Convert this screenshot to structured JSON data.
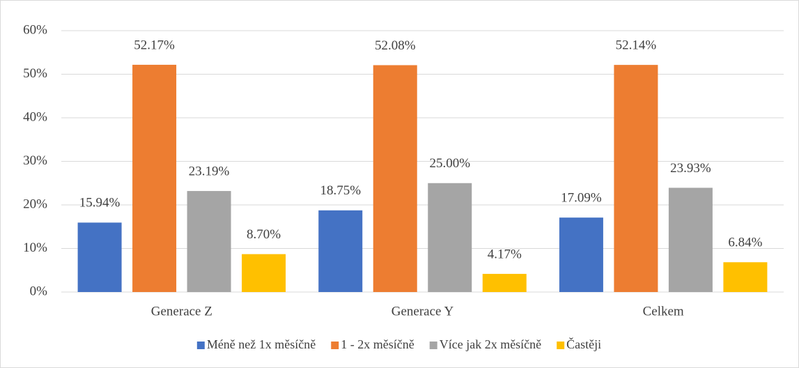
{
  "chart_data": {
    "type": "bar",
    "categories": [
      "Generace Z",
      "Generace Y",
      "Celkem"
    ],
    "series": [
      {
        "name": "Méně než 1x měsíčně",
        "color": "#4472c4",
        "values": [
          15.94,
          18.75,
          17.09
        ],
        "value_labels": [
          "15.94%",
          "18.75%",
          "17.09%"
        ]
      },
      {
        "name": "1 - 2x měsíčně",
        "color": "#ed7d31",
        "values": [
          52.17,
          52.08,
          52.14
        ],
        "value_labels": [
          "52.17%",
          "52.08%",
          "52.14%"
        ]
      },
      {
        "name": "Více jak 2x měsíčně",
        "color": "#a5a5a5",
        "values": [
          23.19,
          25.0,
          23.93
        ],
        "value_labels": [
          "23.19%",
          "25.00%",
          "23.93%"
        ]
      },
      {
        "name": "Častěji",
        "color": "#ffc000",
        "values": [
          8.7,
          4.17,
          6.84
        ],
        "value_labels": [
          "8.70%",
          "4.17%",
          "6.84%"
        ]
      }
    ],
    "ylim": [
      0,
      60
    ],
    "yticks": [
      {
        "value": 0,
        "label": "0%"
      },
      {
        "value": 10,
        "label": "10%"
      },
      {
        "value": 20,
        "label": "20%"
      },
      {
        "value": 30,
        "label": "30%"
      },
      {
        "value": 40,
        "label": "40%"
      },
      {
        "value": 50,
        "label": "50%"
      },
      {
        "value": 60,
        "label": "60%"
      }
    ],
    "grid": true,
    "legend": "bottom"
  }
}
